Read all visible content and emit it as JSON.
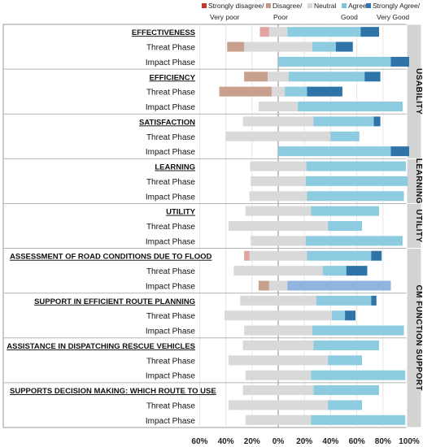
{
  "legend": {
    "items": [
      {
        "label": "Strongly disagree/",
        "sub": "Very poor",
        "color": "#c0392b"
      },
      {
        "label": "Disagree/",
        "sub": "Poor",
        "color": "#c49a86"
      },
      {
        "label": "Neutral",
        "sub": "",
        "color": "#d9d9d9"
      },
      {
        "label": "Agree/",
        "sub": "Good",
        "color": "#7fc3dc"
      },
      {
        "label": "Strongly Agree/",
        "sub": "Very Good",
        "color": "#2e75b6"
      }
    ]
  },
  "colors": {
    "strongly_disagree": "#e3a3a0",
    "disagree": "#c9a08d",
    "neutral": "#d9d9d9",
    "agree": "#8ccbe0",
    "strongly_agree": "#2e74a8",
    "agree_alt": "#8fb4dd",
    "group_bar": "#d3d3d3"
  },
  "chart_data": {
    "type": "bar",
    "orientation": "horizontal-diverging",
    "xlim": [
      -60,
      100
    ],
    "x_ticks": [
      "60%",
      "40%",
      "20%",
      "0%",
      "20%",
      "40%",
      "60%",
      "80%",
      "100%"
    ],
    "series_names": [
      "Strongly disagree/Very poor",
      "Disagree/Poor",
      "Neutral",
      "Agree/Good",
      "Strongly Agree/Very Good"
    ],
    "groups": [
      {
        "label": "USABILITY",
        "rows": [
          0,
          8
        ]
      },
      {
        "label": "LEARNING",
        "rows": [
          9,
          11
        ]
      },
      {
        "label": "UTILITY",
        "rows": [
          12,
          14
        ]
      },
      {
        "label": "CM FUNCTION SUPPORT",
        "rows": [
          15,
          26
        ]
      }
    ],
    "sections": [
      {
        "title": "EFFECTIVENESS",
        "align": "right",
        "rows": [
          {
            "label": "",
            "sd": 7,
            "d": 0,
            "n": 14,
            "a": 56,
            "sa": 14
          },
          {
            "label": "Threat Phase",
            "sd": 0,
            "d": 13,
            "n": 52,
            "a": 18,
            "sa": 13
          },
          {
            "label": "Impact Phase",
            "sd": 0,
            "d": 0,
            "n": 0,
            "a": 86,
            "sa": 14
          }
        ]
      },
      {
        "title": "EFFICIENCY",
        "align": "right",
        "rows": [
          {
            "label": "",
            "sd": 0,
            "d": 18,
            "n": 16,
            "a": 58,
            "sa": 12
          },
          {
            "label": "Threat Phase",
            "sd": 0,
            "d": 40,
            "n": 10,
            "a": 17,
            "sa": 27
          },
          {
            "label": "Impact Phase",
            "sd": 0,
            "d": 0,
            "n": 30,
            "a": 80,
            "sa": 0
          }
        ]
      },
      {
        "title": "SATISFACTION",
        "align": "right",
        "rows": [
          {
            "label": "",
            "sd": 0,
            "d": 0,
            "n": 54,
            "a": 46,
            "sa": 5
          },
          {
            "label": "Threat Phase",
            "sd": 0,
            "d": 0,
            "n": 80,
            "a": 22,
            "sa": 0
          },
          {
            "label": "Impact Phase",
            "sd": 0,
            "d": 0,
            "n": 0,
            "a": 86,
            "sa": 14
          }
        ]
      },
      {
        "title": "LEARNING",
        "align": "right",
        "rows": [
          {
            "label": "",
            "sd": 0,
            "d": 0,
            "n": 43,
            "a": 76,
            "sa": 0
          },
          {
            "label": "Threat Phase",
            "sd": 0,
            "d": 0,
            "n": 42,
            "a": 78,
            "sa": 0
          },
          {
            "label": "Impact Phase",
            "sd": 0,
            "d": 0,
            "n": 44,
            "a": 74,
            "sa": 0
          }
        ]
      },
      {
        "title": "UTILITY",
        "align": "right",
        "rows": [
          {
            "label": "",
            "sd": 0,
            "d": 0,
            "n": 50,
            "a": 52,
            "sa": 0
          },
          {
            "label": "Threat Phase",
            "sd": 0,
            "d": 0,
            "n": 76,
            "a": 26,
            "sa": 0
          },
          {
            "label": "Impact Phase",
            "sd": 0,
            "d": 0,
            "n": 42,
            "a": 74,
            "sa": 0
          }
        ]
      },
      {
        "title": "ASSESSMENT OF ROAD CONDITIONS DUE TO FLOOD",
        "align": "left",
        "rows": [
          {
            "label": "",
            "sd": 4,
            "d": 0,
            "n": 44,
            "a": 49,
            "sa": 8
          },
          {
            "label": "Threat Phase",
            "sd": 0,
            "d": 0,
            "n": 68,
            "a": 18,
            "sa": 16
          },
          {
            "label": "Impact Phase",
            "sd": 0,
            "d": 8,
            "n": 14,
            "a": 79,
            "sa": 0
          }
        ]
      },
      {
        "title": "SUPPORT IN EFFICIENT ROUTE PLANNING",
        "align": "right",
        "rows": [
          {
            "label": "",
            "sd": 0,
            "d": 0,
            "n": 58,
            "a": 42,
            "sa": 4
          },
          {
            "label": "Threat Phase",
            "sd": 0,
            "d": 0,
            "n": 82,
            "a": 10,
            "sa": 8
          },
          {
            "label": "Impact Phase",
            "sd": 0,
            "d": 0,
            "n": 52,
            "a": 70,
            "sa": 0
          }
        ]
      },
      {
        "title": "ASSISTANCE IN DISPATCHING RESCUE VEHICLES",
        "align": "right",
        "rows": [
          {
            "label": "",
            "sd": 0,
            "d": 0,
            "n": 54,
            "a": 50,
            "sa": 0
          },
          {
            "label": "Threat Phase",
            "sd": 0,
            "d": 0,
            "n": 76,
            "a": 26,
            "sa": 0
          },
          {
            "label": "Impact Phase",
            "sd": 0,
            "d": 0,
            "n": 50,
            "a": 72,
            "sa": 0
          }
        ]
      },
      {
        "title": "SUPPORTS DECISION MAKING: WHICH ROUTE TO USE",
        "align": "left",
        "rows": [
          {
            "label": "",
            "sd": 0,
            "d": 0,
            "n": 54,
            "a": 50,
            "sa": 0
          },
          {
            "label": "Threat Phase",
            "sd": 0,
            "d": 0,
            "n": 76,
            "a": 26,
            "sa": 0
          },
          {
            "label": "Impact Phase",
            "sd": 0,
            "d": 0,
            "n": 50,
            "a": 72,
            "sa": 0
          }
        ]
      }
    ]
  }
}
